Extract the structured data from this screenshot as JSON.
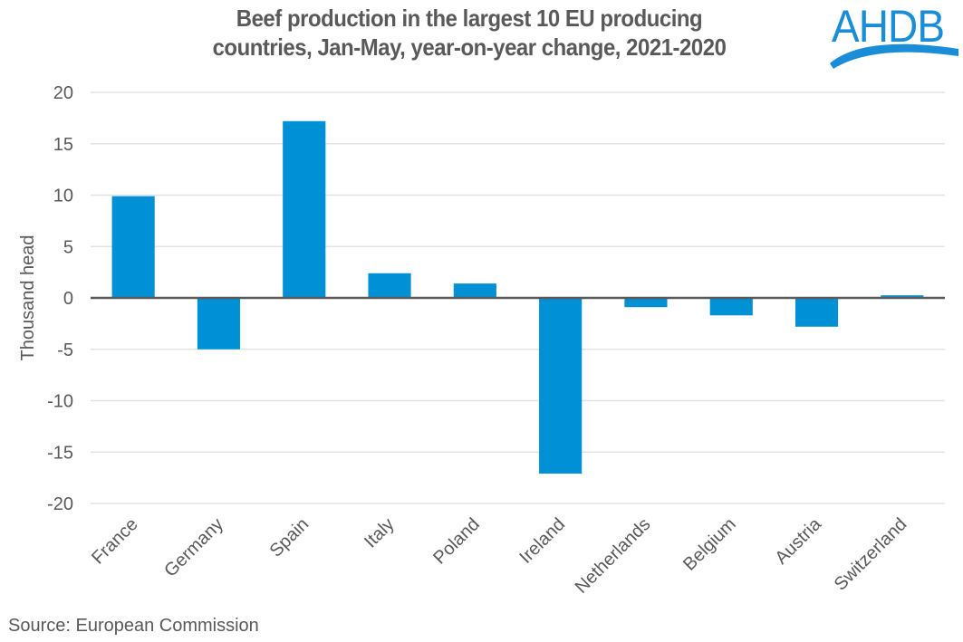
{
  "header": {
    "title_line1": "Beef production in the largest 10 EU producing",
    "title_line2": "countries, Jan-May, year-on-year change, 2021-2020",
    "logo_text": "AHDB"
  },
  "footer": {
    "source": "Source: European Commission"
  },
  "colors": {
    "bar": "#0090d6",
    "text": "#595959",
    "gridline": "#e3e3e3",
    "zero_axis": "#595959",
    "logo": "#1a8dd8"
  },
  "chart_data": {
    "type": "bar",
    "title": "Beef production in the largest 10 EU producing countries, Jan-May, year-on-year change, 2021-2020",
    "xlabel": "",
    "ylabel": "Thousand head",
    "categories": [
      "France",
      "Germany",
      "Spain",
      "Italy",
      "Poland",
      "Ireland",
      "Netherlands",
      "Belgium",
      "Austria",
      "Switzerland"
    ],
    "values": [
      9.9,
      -5.0,
      17.2,
      2.4,
      1.4,
      -17.1,
      -0.9,
      -1.7,
      -2.8,
      0.25
    ],
    "ylim": [
      -20,
      20
    ],
    "yticks": [
      20,
      15,
      10,
      5,
      0,
      -5,
      -10,
      -15,
      -20
    ],
    "grid": true,
    "legend": "none",
    "source": "Source: European Commission"
  }
}
